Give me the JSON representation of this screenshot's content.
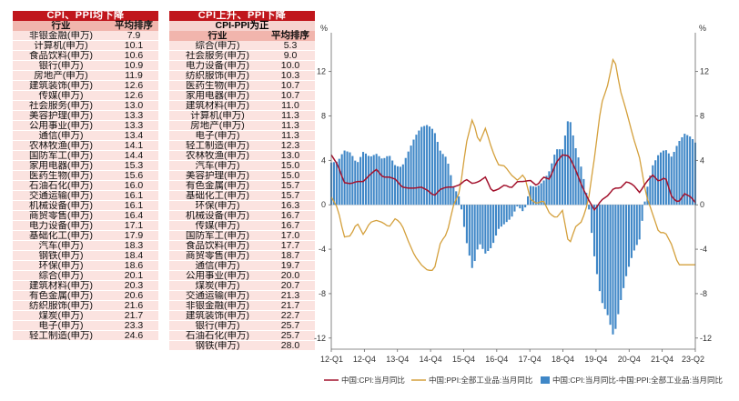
{
  "left_table": {
    "title": "CPI、PPI均下降",
    "headers": [
      "行业",
      "平均排序"
    ],
    "rows": [
      [
        "非银金融(申万)",
        "7.9"
      ],
      [
        "计算机(申万)",
        "10.1"
      ],
      [
        "食品饮料(申万)",
        "10.6"
      ],
      [
        "银行(申万)",
        "10.9"
      ],
      [
        "房地产(申万)",
        "11.9"
      ],
      [
        "建筑装饰(申万)",
        "12.6"
      ],
      [
        "传媒(申万)",
        "12.6"
      ],
      [
        "社会服务(申万)",
        "13.0"
      ],
      [
        "美容护理(申万)",
        "13.3"
      ],
      [
        "公用事业(申万)",
        "13.3"
      ],
      [
        "通信(申万)",
        "13.4"
      ],
      [
        "农林牧渔(申万)",
        "14.1"
      ],
      [
        "国防军工(申万)",
        "14.4"
      ],
      [
        "家用电器(申万)",
        "15.3"
      ],
      [
        "医药生物(申万)",
        "15.6"
      ],
      [
        "石油石化(申万)",
        "16.0"
      ],
      [
        "交通运输(申万)",
        "16.1"
      ],
      [
        "机械设备(申万)",
        "16.1"
      ],
      [
        "商贸零售(申万)",
        "16.4"
      ],
      [
        "电力设备(申万)",
        "17.1"
      ],
      [
        "基础化工(申万)",
        "17.9"
      ],
      [
        "汽车(申万)",
        "18.3"
      ],
      [
        "钢铁(申万)",
        "18.4"
      ],
      [
        "环保(申万)",
        "18.6"
      ],
      [
        "综合(申万)",
        "20.1"
      ],
      [
        "建筑材料(申万)",
        "20.3"
      ],
      [
        "有色金属(申万)",
        "20.6"
      ],
      [
        "纺织服饰(申万)",
        "21.6"
      ],
      [
        "煤炭(申万)",
        "21.7"
      ],
      [
        "电子(申万)",
        "23.3"
      ],
      [
        "轻工制造(申万)",
        "24.6"
      ]
    ]
  },
  "right_table": {
    "title": "CPI上升、PPI下降",
    "subtitle": "CPI-PPI为正",
    "headers": [
      "行业",
      "平均排序"
    ],
    "rows": [
      [
        "综合(申万)",
        "5.3"
      ],
      [
        "社会服务(申万)",
        "9.0"
      ],
      [
        "电力设备(申万)",
        "10.0"
      ],
      [
        "纺织服饰(申万)",
        "10.3"
      ],
      [
        "医药生物(申万)",
        "10.7"
      ],
      [
        "家用电器(申万)",
        "10.7"
      ],
      [
        "建筑材料(申万)",
        "11.0"
      ],
      [
        "计算机(申万)",
        "11.3"
      ],
      [
        "房地产(申万)",
        "11.3"
      ],
      [
        "电子(申万)",
        "11.3"
      ],
      [
        "轻工制造(申万)",
        "12.3"
      ],
      [
        "农林牧渔(申万)",
        "13.0"
      ],
      [
        "汽车(申万)",
        "15.0"
      ],
      [
        "美容护理(申万)",
        "15.0"
      ],
      [
        "有色金属(申万)",
        "15.7"
      ],
      [
        "基础化工(申万)",
        "15.7"
      ],
      [
        "环保(申万)",
        "16.3"
      ],
      [
        "机械设备(申万)",
        "16.7"
      ],
      [
        "传媒(申万)",
        "16.7"
      ],
      [
        "国防军工(申万)",
        "17.0"
      ],
      [
        "食品饮料(申万)",
        "17.7"
      ],
      [
        "商贸零售(申万)",
        "18.7"
      ],
      [
        "通信(申万)",
        "19.7"
      ],
      [
        "公用事业(申万)",
        "20.0"
      ],
      [
        "煤炭(申万)",
        "20.7"
      ],
      [
        "交通运输(申万)",
        "21.3"
      ],
      [
        "非银金融(申万)",
        "21.7"
      ],
      [
        "建筑装饰(申万)",
        "22.7"
      ],
      [
        "银行(申万)",
        "25.7"
      ],
      [
        "石油石化(申万)",
        "25.7"
      ],
      [
        "钢铁(申万)",
        "28.0"
      ]
    ]
  },
  "chart_data": {
    "type": "line+bar",
    "unit_left": "%",
    "unit_right": "%",
    "y_ticks": [
      -12,
      -8,
      -4,
      0,
      4,
      8,
      12
    ],
    "ylim": [
      -13,
      15
    ],
    "x_tick_labels": [
      "12-Q1",
      "12-Q4",
      "13-Q4",
      "14-Q4",
      "15-Q4",
      "16-Q4",
      "17-Q4",
      "18-Q4",
      "19-Q4",
      "20-Q4",
      "21-Q4",
      "23-Q2"
    ],
    "x_range": [
      "2012-01",
      "2023-06"
    ],
    "colors": {
      "cpi": "#a3122d",
      "ppi": "#d4a03c",
      "bar": "#3f87c7"
    },
    "series": [
      {
        "name": "中国:CPI:当月同比",
        "kind": "line",
        "color": "#a3122d",
        "anchors": [
          [
            0,
            4.5
          ],
          [
            3,
            3.6
          ],
          [
            6,
            2.0
          ],
          [
            9,
            1.9
          ],
          [
            12,
            2.1
          ],
          [
            15,
            2.1
          ],
          [
            18,
            2.7
          ],
          [
            21,
            3.2
          ],
          [
            24,
            2.5
          ],
          [
            27,
            2.5
          ],
          [
            30,
            2.3
          ],
          [
            33,
            1.6
          ],
          [
            36,
            1.5
          ],
          [
            39,
            1.5
          ],
          [
            42,
            1.6
          ],
          [
            45,
            1.3
          ],
          [
            48,
            0.8
          ],
          [
            51,
            1.4
          ],
          [
            54,
            1.6
          ],
          [
            57,
            1.6
          ],
          [
            60,
            1.8
          ],
          [
            63,
            2.3
          ],
          [
            66,
            1.9
          ],
          [
            69,
            2.1
          ],
          [
            72,
            2.5
          ],
          [
            75,
            1.2
          ],
          [
            78,
            1.4
          ],
          [
            81,
            1.8
          ],
          [
            84,
            1.5
          ],
          [
            87,
            2.1
          ],
          [
            90,
            2.1
          ],
          [
            93,
            2.2
          ],
          [
            96,
            1.7
          ],
          [
            99,
            2.5
          ],
          [
            102,
            2.3
          ],
          [
            105,
            3.8
          ],
          [
            108,
            4.5
          ],
          [
            111,
            4.4
          ],
          [
            114,
            3.2
          ],
          [
            117,
            1.7
          ],
          [
            120,
            0.5
          ],
          [
            123,
            -0.5
          ],
          [
            126,
            0.4
          ],
          [
            129,
            0.8
          ],
          [
            132,
            1.5
          ],
          [
            135,
            1.5
          ],
          [
            138,
            2.1
          ],
          [
            141,
            1.8
          ],
          [
            144,
            1.1
          ],
          [
            147,
            2.0
          ],
          [
            150,
            2.7
          ],
          [
            153,
            2.1
          ],
          [
            156,
            2.5
          ],
          [
            159,
            0.7
          ],
          [
            162,
            0.2
          ],
          [
            165,
            1.0
          ],
          [
            168,
            0.7
          ],
          [
            170,
            0.2
          ]
        ]
      },
      {
        "name": "中国:PPI:全部工业品:当月同比",
        "kind": "line",
        "color": "#d4a03c",
        "anchors": [
          [
            0,
            0.7
          ],
          [
            3,
            -0.3
          ],
          [
            6,
            -2.9
          ],
          [
            9,
            -2.8
          ],
          [
            12,
            -1.6
          ],
          [
            15,
            -2.7
          ],
          [
            18,
            -1.6
          ],
          [
            21,
            -1.4
          ],
          [
            24,
            -1.6
          ],
          [
            27,
            -2.0
          ],
          [
            30,
            -1.2
          ],
          [
            33,
            -1.8
          ],
          [
            36,
            -3.3
          ],
          [
            39,
            -4.6
          ],
          [
            42,
            -5.4
          ],
          [
            45,
            -5.9
          ],
          [
            48,
            -5.9
          ],
          [
            51,
            -3.4
          ],
          [
            54,
            -2.6
          ],
          [
            57,
            -0.1
          ],
          [
            60,
            1.2
          ],
          [
            63,
            5.5
          ],
          [
            66,
            7.8
          ],
          [
            69,
            5.5
          ],
          [
            72,
            6.9
          ],
          [
            75,
            5.0
          ],
          [
            78,
            3.6
          ],
          [
            81,
            3.5
          ],
          [
            84,
            2.7
          ],
          [
            87,
            2.2
          ],
          [
            90,
            2.8
          ],
          [
            93,
            0.5
          ],
          [
            96,
            0.1
          ],
          [
            99,
            0.4
          ],
          [
            102,
            -0.8
          ],
          [
            105,
            -1.2
          ],
          [
            108,
            -0.5
          ],
          [
            111,
            -3.7
          ],
          [
            114,
            -2.0
          ],
          [
            117,
            -1.5
          ],
          [
            120,
            0.3
          ],
          [
            123,
            4.4
          ],
          [
            126,
            9.0
          ],
          [
            129,
            10.7
          ],
          [
            132,
            13.5
          ],
          [
            135,
            10.3
          ],
          [
            138,
            8.3
          ],
          [
            141,
            6.1
          ],
          [
            144,
            4.2
          ],
          [
            147,
            0.9
          ],
          [
            150,
            -0.8
          ],
          [
            153,
            -2.5
          ],
          [
            156,
            -2.5
          ],
          [
            159,
            -3.6
          ],
          [
            162,
            -5.4
          ]
        ]
      },
      {
        "name": "中国:CPI:当月同比-中国:PPI:全部工业品:当月同比",
        "kind": "bar",
        "color": "#3f87c7"
      }
    ]
  }
}
